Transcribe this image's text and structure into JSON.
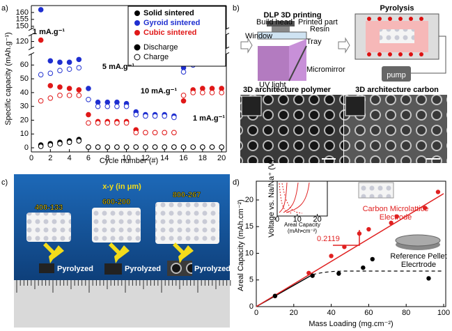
{
  "panel_labels": [
    "a)",
    "b)",
    "c)",
    "d)"
  ],
  "chart_data": [
    {
      "type": "scatter",
      "x_label": "Cycle number (#)",
      "y_label": "Specific capacity (mAh.g⁻¹)",
      "x": [
        1,
        2,
        3,
        4,
        5,
        6,
        7,
        8,
        9,
        10,
        11,
        12,
        13,
        14,
        15,
        16,
        17,
        18,
        19,
        20
      ],
      "xlim": [
        0,
        20.5
      ],
      "xticks": [
        0,
        2,
        4,
        6,
        8,
        10,
        12,
        14,
        16,
        18,
        20
      ],
      "ylim": [
        -3,
        165
      ],
      "ybreaks": [
        [
          68,
          115
        ],
        [
          125,
          148
        ]
      ],
      "yticks": [
        0,
        10,
        20,
        30,
        40,
        50,
        60,
        120,
        150,
        155,
        160
      ],
      "series": [
        {
          "name": "Solid sintered",
          "color": "#000000",
          "discharge": [
            2,
            3,
            4,
            5,
            6,
            0.5,
            0.5,
            0.5,
            0.5,
            0.5,
            0.5,
            0.5,
            0.5,
            0.5,
            0.5,
            0.5,
            0.5,
            0.5,
            0.5,
            0.5
          ],
          "charge": [
            1,
            2,
            3,
            4,
            5,
            0.5,
            0.5,
            0.5,
            0.5,
            0.5,
            0.5,
            0.5,
            0.5,
            0.5,
            0.5,
            0.5,
            0.5,
            0.5,
            0.5,
            0.5
          ]
        },
        {
          "name": "Gyroid sintered",
          "color": "#1f2fd0",
          "discharge": [
            162,
            63,
            62,
            62,
            64,
            43,
            33,
            33,
            33,
            32,
            26,
            24,
            24,
            24,
            23,
            58,
            63,
            64,
            64,
            65
          ],
          "charge": [
            53,
            54,
            56,
            57,
            58,
            35,
            30,
            30,
            30,
            30,
            24,
            23,
            23,
            23,
            22,
            55,
            60,
            61,
            62,
            62
          ]
        },
        {
          "name": "Cubic sintered",
          "color": "#e01818",
          "discharge": [
            121,
            45,
            44,
            43,
            42,
            24,
            19,
            19,
            19,
            19,
            13,
            11,
            11,
            11,
            11,
            34,
            42,
            43,
            43,
            43
          ],
          "charge": [
            34,
            36,
            38,
            38,
            38,
            18,
            18,
            18,
            18,
            18,
            11,
            11,
            11,
            11,
            11,
            38,
            40,
            40,
            40,
            40
          ]
        }
      ],
      "marker_legend": [
        "Discharge",
        "Charge"
      ],
      "annotations": [
        "1 mA.g⁻¹",
        "5 mA.g⁻¹",
        "10 mA.g⁻¹",
        "1 mA.g⁻¹"
      ]
    },
    {
      "type": "scatter",
      "x_label": "Mass Loading (mg.cm⁻²)",
      "y_label": "Areal Capacity (mAh.cm⁻²)",
      "xlim": [
        0,
        100
      ],
      "xticks": [
        0,
        20,
        40,
        60,
        80,
        100
      ],
      "ylim": [
        0,
        23
      ],
      "yticks": [
        0,
        5,
        10,
        15,
        20
      ],
      "series": [
        {
          "name": "Carbon Microlattice Electrode",
          "color": "#e02020",
          "x": [
            10,
            28,
            40,
            47,
            55,
            60,
            72,
            75,
            90,
            97
          ],
          "values": [
            2,
            6.3,
            9.5,
            11.2,
            13.7,
            14.5,
            15.7,
            16.9,
            18.5,
            21.5
          ]
        },
        {
          "name": "Reference Pellet Elecrtrode",
          "color": "#000000",
          "x": [
            10,
            30,
            44,
            57,
            62,
            92
          ],
          "values": [
            2,
            5.8,
            6.2,
            7.3,
            8.9,
            5.3
          ]
        }
      ],
      "fit_slope": 0.2119,
      "inset": {
        "y_label": "Voltage vs. Na/Na⁺ (V)",
        "x_label": "Areal Capacity (mAh•cm⁻²)",
        "xlim": [
          0,
          25
        ],
        "xticks": [
          0,
          10,
          20
        ]
      }
    }
  ],
  "panel_b": {
    "titles": [
      "DLP 3D printing",
      "Pyrolysis"
    ],
    "labels": [
      "Build head",
      "Printed part",
      "Resin",
      "Tray",
      "Window",
      "Micromirror",
      "UV light",
      "pump"
    ],
    "image_titles": [
      "3D architecture polymer",
      "3D architecture carbon"
    ]
  },
  "panel_c": {
    "title": "x-y (in μm)",
    "sizes": [
      "400-133",
      "600-200",
      "800-267"
    ],
    "tags": [
      "Pyrolyzed",
      "Pyrolyzed",
      "Pyrolyzed"
    ]
  }
}
